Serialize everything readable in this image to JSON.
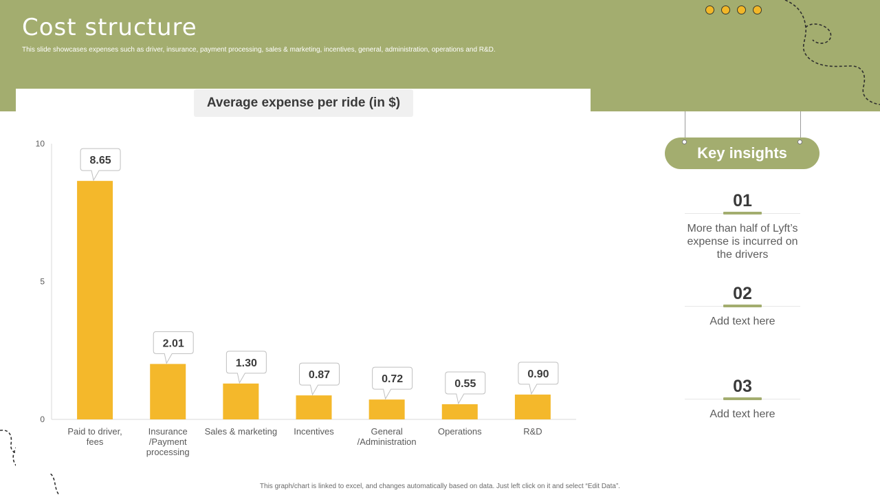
{
  "slide": {
    "title": "Cost structure",
    "subtitle": "This slide showcases expenses such as driver, insurance, payment processing, sales & marketing, incentives, general, administration, operations and R&D.",
    "footnote": "This graph/chart is linked to excel, and changes automatically based on data. Just left click on it and select “Edit Data”."
  },
  "colors": {
    "accent_green": "#a3ad6f",
    "bar_yellow": "#f4b82b",
    "text_dark": "#3a3a3a"
  },
  "chart_data": {
    "type": "bar",
    "title": "Average expense per ride (in $)",
    "categories": [
      [
        "Paid to driver,",
        "fees"
      ],
      [
        "Insurance",
        "/Payment",
        "processing"
      ],
      [
        "Sales & marketing"
      ],
      [
        "Incentives"
      ],
      [
        "General",
        "/Administration"
      ],
      [
        "Operations"
      ],
      [
        "R&D"
      ]
    ],
    "values": [
      8.65,
      2.01,
      1.3,
      0.87,
      0.72,
      0.55,
      0.9
    ],
    "data_labels": [
      "8.65",
      "2.01",
      "1.30",
      "0.87",
      "0.72",
      "0.55",
      "0.90"
    ],
    "yticks": [
      0,
      5,
      10
    ],
    "ylim": [
      0,
      10
    ],
    "grid": false,
    "xlabel": "",
    "ylabel": ""
  },
  "insights": {
    "heading": "Key insights",
    "items": [
      {
        "num": "01",
        "text": "More than half of Lyft’s expense is incurred on the drivers"
      },
      {
        "num": "02",
        "text": "Add text here"
      },
      {
        "num": "03",
        "text": "Add text here"
      }
    ]
  }
}
